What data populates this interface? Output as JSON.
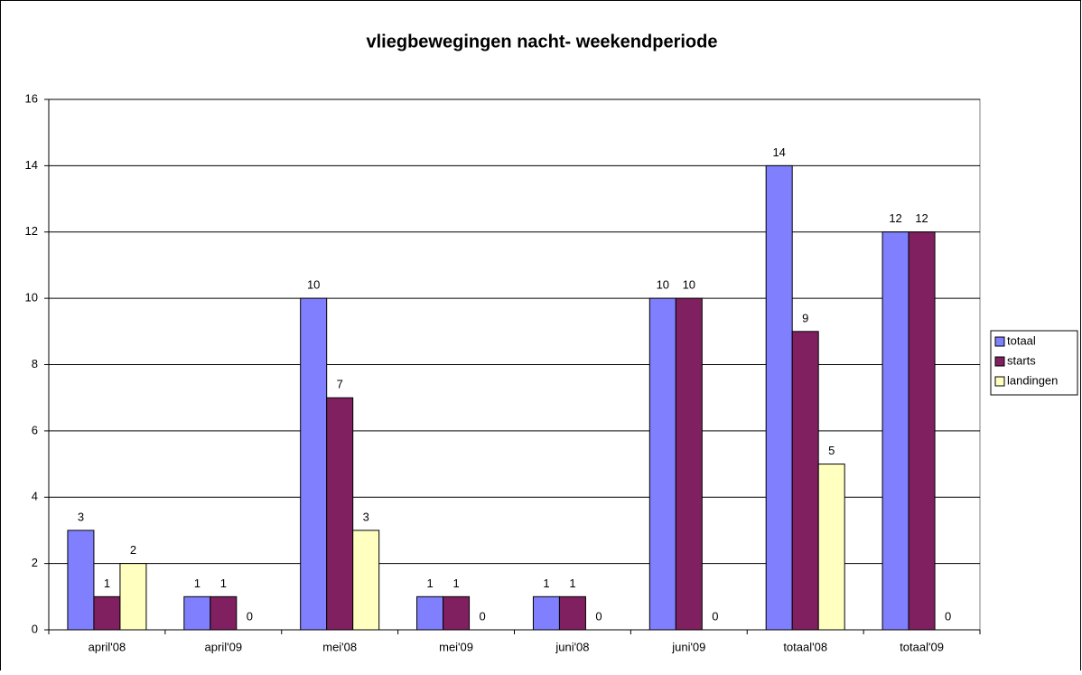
{
  "chart_data": {
    "type": "bar",
    "title": "vliegbewegingen nacht- weekendperiode",
    "categories": [
      "april'08",
      "april'09",
      "mei'08",
      "mei'09",
      "juni'08",
      "juni'09",
      "totaal'08",
      "totaal'09"
    ],
    "series": [
      {
        "name": "totaal",
        "color": "#8080ff",
        "values": [
          3,
          1,
          10,
          1,
          1,
          10,
          14,
          12
        ]
      },
      {
        "name": "starts",
        "color": "#802060",
        "values": [
          1,
          1,
          7,
          1,
          1,
          10,
          9,
          12
        ]
      },
      {
        "name": "landingen",
        "color": "#ffffc0",
        "values": [
          2,
          0,
          3,
          0,
          0,
          0,
          5,
          0
        ]
      }
    ],
    "ylim": [
      0,
      16
    ],
    "yticks": [
      0,
      2,
      4,
      6,
      8,
      10,
      12,
      14,
      16
    ],
    "grid": true,
    "legend": "right"
  }
}
